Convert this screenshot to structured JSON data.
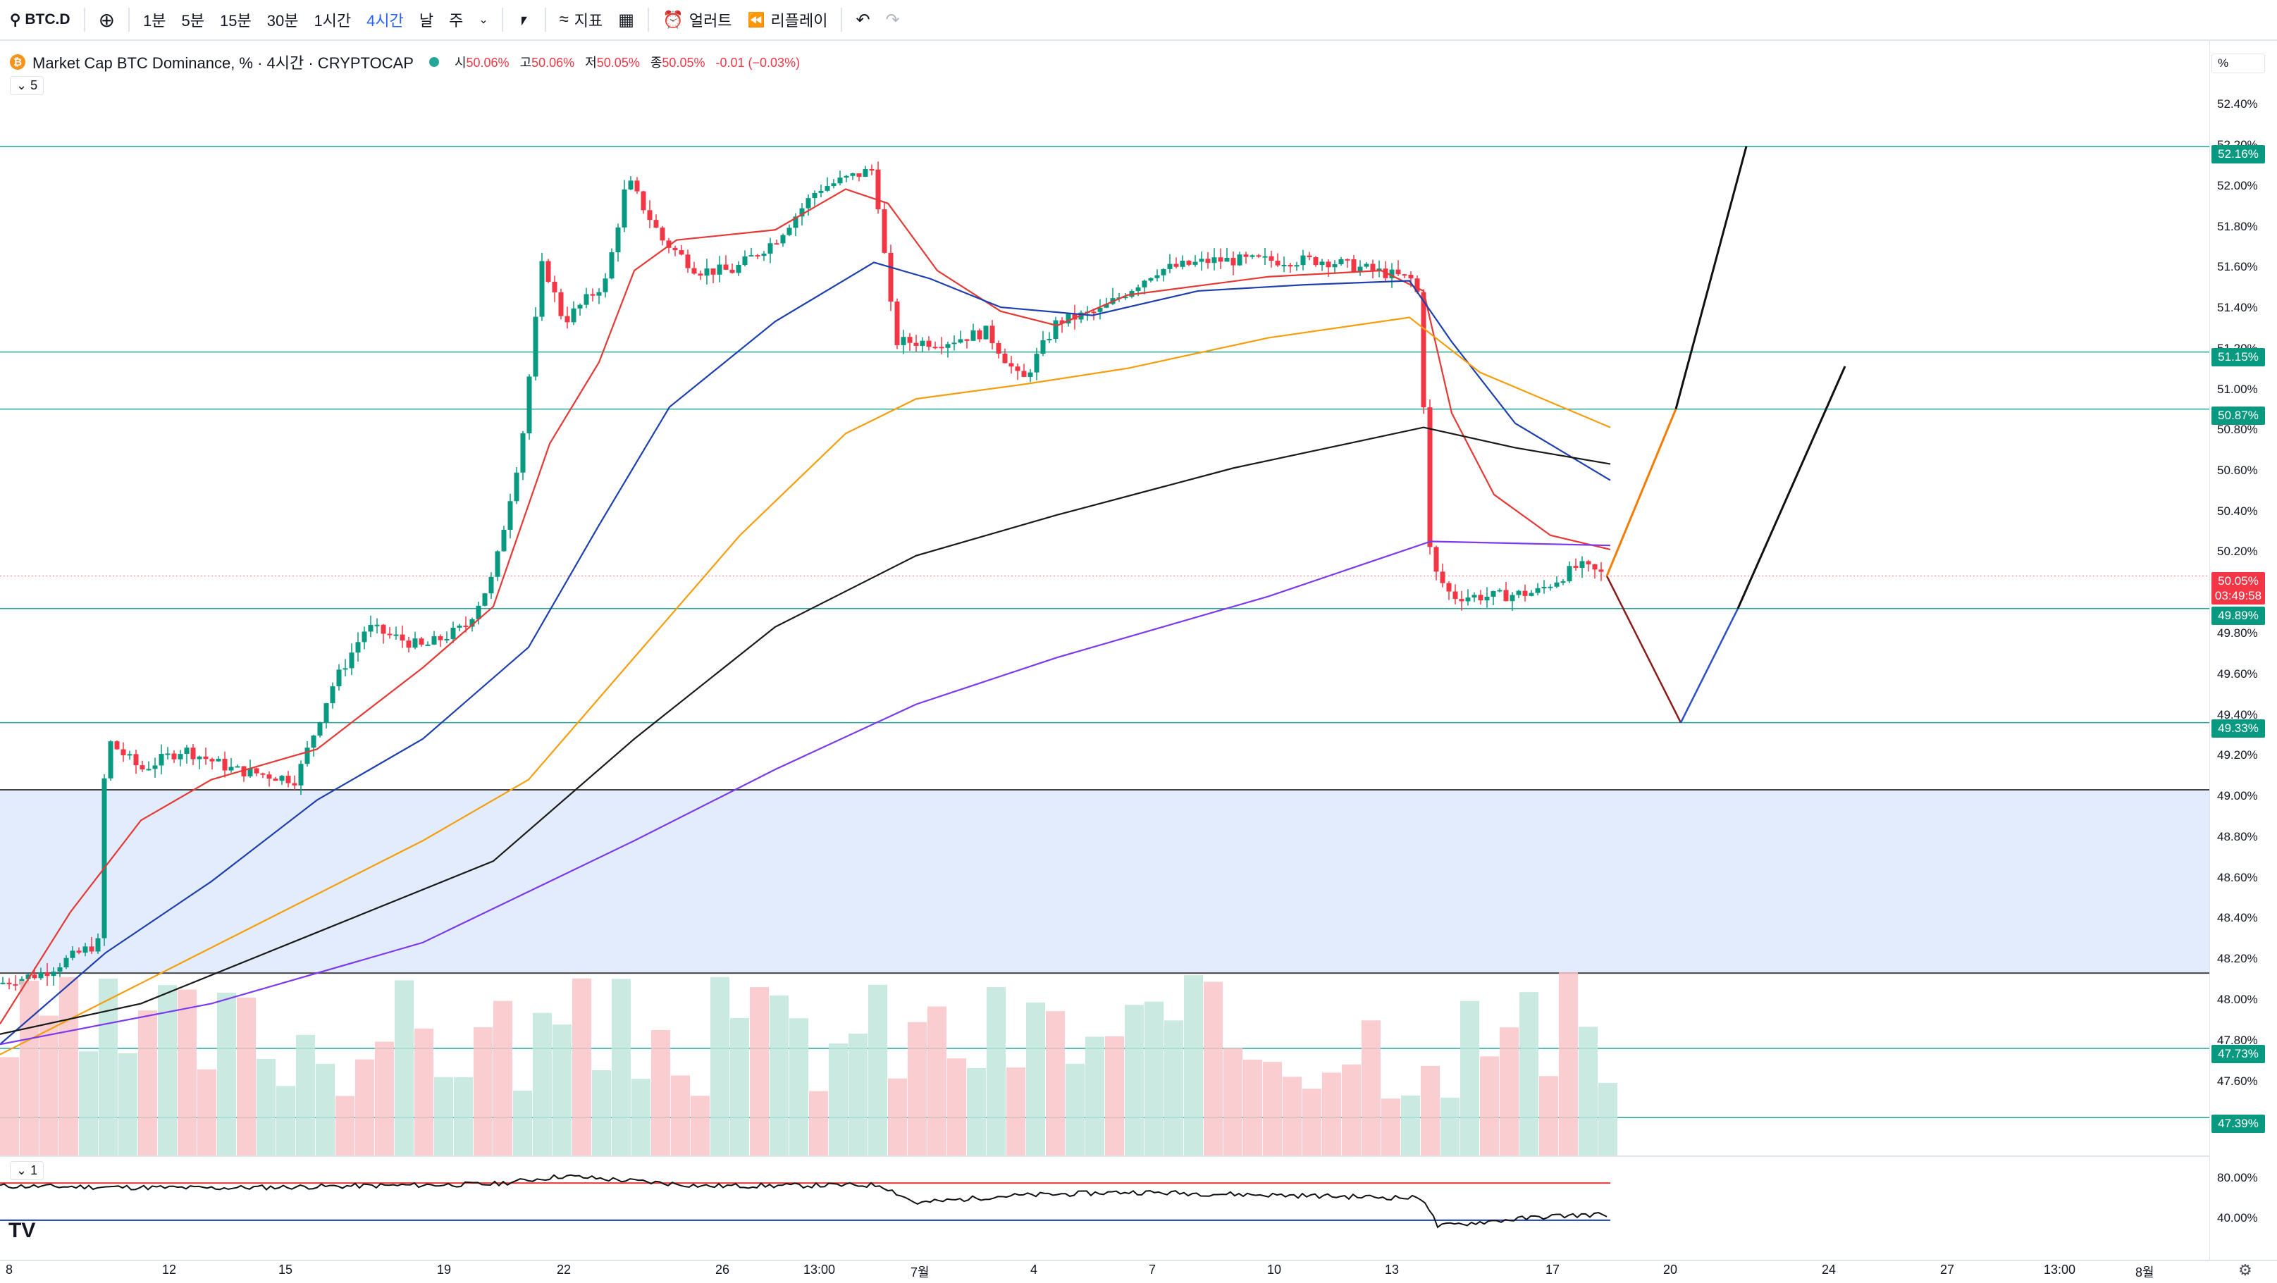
{
  "toolbar": {
    "symbol": "BTC.D",
    "intervals": [
      "1분",
      "5분",
      "15분",
      "30분",
      "1시간",
      "4시간",
      "날",
      "주"
    ],
    "active_interval": "4시간",
    "indicators_label": "지표",
    "alert_label": "얼러트",
    "replay_label": "리플레이"
  },
  "legend": {
    "title": "Market Cap BTC Dominance, % · 4시간 · CRYPTOCAP",
    "ohlc_labels": [
      "시",
      "고",
      "저",
      "종"
    ],
    "ohlc_values": [
      "50.06%",
      "50.06%",
      "50.05%",
      "50.05%"
    ],
    "change": "-0.01 (−0.03%)",
    "ma_count": "5",
    "osc_count": "1"
  },
  "price_axis": {
    "unit": "%",
    "ticks": [
      "52.40%",
      "52.20%",
      "52.00%",
      "51.80%",
      "51.60%",
      "51.40%",
      "51.20%",
      "51.00%",
      "50.80%",
      "50.60%",
      "50.40%",
      "50.20%",
      "49.80%",
      "49.60%",
      "49.40%",
      "49.20%",
      "49.00%",
      "48.80%",
      "48.60%",
      "48.40%",
      "48.20%",
      "48.00%",
      "47.80%",
      "47.60%"
    ],
    "level_tags": [
      "52.16%",
      "51.15%",
      "50.87%",
      "49.89%",
      "49.33%",
      "47.73%",
      "47.39%"
    ],
    "current_price": "50.05%",
    "countdown": "03:49:58"
  },
  "osc_axis": {
    "ticks": [
      "80.00%",
      "40.00%"
    ]
  },
  "time_axis": {
    "labels": [
      "8",
      "12",
      "15",
      "19",
      "22",
      "26",
      "13:00",
      "7월",
      "4",
      "7",
      "10",
      "13",
      "17",
      "20",
      "24",
      "27",
      "13:00",
      "8월"
    ]
  },
  "colors": {
    "up": "#089981",
    "down": "#f23645",
    "ma_red": "#e53935",
    "ma_blue": "#1e40af",
    "ma_orange": "#f59e0b",
    "ma_black": "#1a1a1a",
    "ma_purple": "#7c3aed",
    "level_line": "#26a69a",
    "zone": "#e3ecfd"
  }
}
